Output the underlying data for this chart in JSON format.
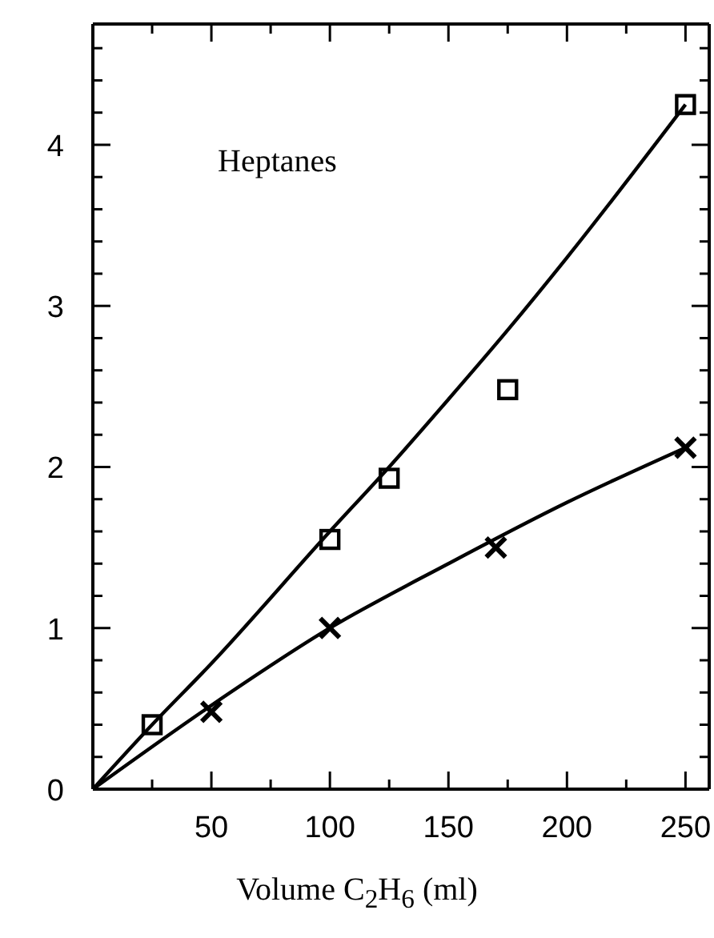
{
  "chart_data": {
    "type": "scatter",
    "xlabel": "Volume C$_{2}$H$_{6}$ (ml)",
    "annotations": [
      "Heptanes"
    ],
    "xlim": [
      0,
      260
    ],
    "ylim": [
      0,
      4.75
    ],
    "xticks": [
      {
        "value": 25,
        "label": null
      },
      50,
      {
        "value": 75,
        "label": null
      },
      100,
      {
        "value": 125,
        "label": null
      },
      150,
      {
        "value": 175,
        "label": null
      },
      200,
      {
        "value": 225,
        "label": null
      },
      250
    ],
    "yticks": [
      0,
      {
        "value": 0.2,
        "label": null
      },
      {
        "value": 0.4,
        "label": null
      },
      {
        "value": 0.6,
        "label": null
      },
      {
        "value": 0.8,
        "label": null
      },
      1,
      {
        "value": 1.2,
        "label": null
      },
      {
        "value": 1.4,
        "label": null
      },
      {
        "value": 1.6,
        "label": null
      },
      {
        "value": 1.8,
        "label": null
      },
      2,
      {
        "value": 2.2,
        "label": null
      },
      {
        "value": 2.4,
        "label": null
      },
      {
        "value": 2.6,
        "label": null
      },
      {
        "value": 2.8,
        "label": null
      },
      3,
      {
        "value": 3.2,
        "label": null
      },
      {
        "value": 3.4,
        "label": null
      },
      {
        "value": 3.6,
        "label": null
      },
      {
        "value": 3.8,
        "label": null
      },
      4,
      {
        "value": 4.2,
        "label": null
      },
      {
        "value": 4.4,
        "label": null
      },
      {
        "value": 4.6,
        "label": null
      }
    ],
    "series": [
      {
        "type": "line",
        "marker": "none",
        "color": "#000000",
        "x": [
          0,
          25,
          50,
          100,
          125,
          150,
          175,
          200,
          250
        ],
        "values": [
          0,
          0.4,
          0.78,
          1.6,
          2.0,
          2.42,
          2.85,
          3.3,
          4.25
        ]
      },
      {
        "type": "line",
        "marker": "none",
        "color": "#000000",
        "x": [
          0,
          50,
          100,
          150,
          200,
          250
        ],
        "values": [
          0,
          0.52,
          1.0,
          1.4,
          1.78,
          2.12
        ]
      },
      {
        "marker": "square",
        "color": "#000000",
        "x": [
          25,
          100,
          125,
          175,
          250
        ],
        "values": [
          0.4,
          1.55,
          1.93,
          2.48,
          4.25
        ]
      },
      {
        "marker": "cross",
        "color": "#000000",
        "x": [
          50,
          100,
          170,
          250
        ],
        "values": [
          0.48,
          1.0,
          1.5,
          2.12
        ]
      }
    ]
  }
}
